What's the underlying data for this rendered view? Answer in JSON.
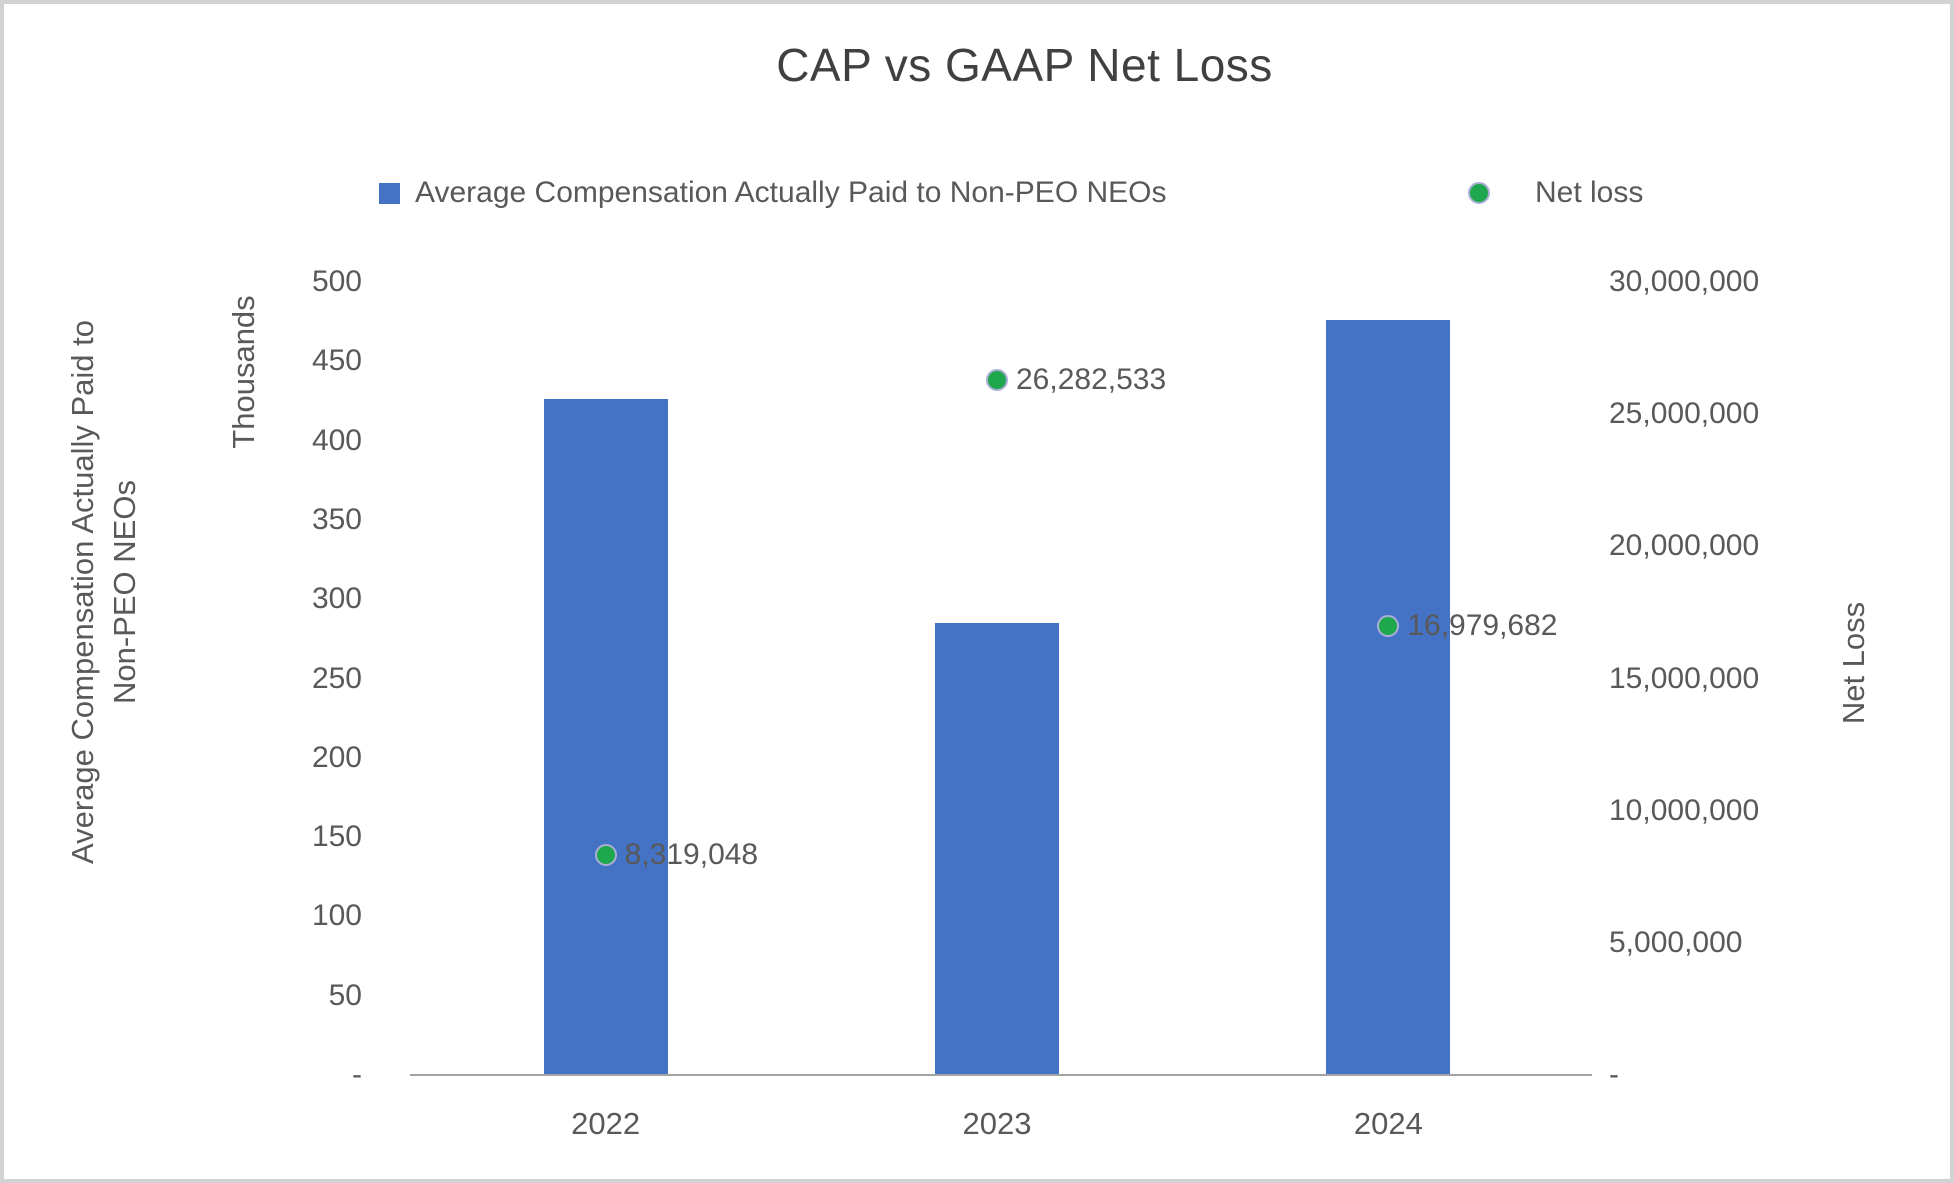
{
  "title": "CAP vs GAAP Net Loss",
  "legend": {
    "position": "top",
    "items": [
      {
        "label": "Average Compensation Actually Paid to Non-PEO NEOs",
        "marker": "square",
        "color": "#4472C4"
      },
      {
        "label": "Net loss",
        "marker": "circle",
        "color": "#1FA74E",
        "marker_border": "#A9AED6"
      }
    ]
  },
  "chart_data": {
    "type": "combo",
    "title": "CAP vs GAAP Net Loss",
    "categories": [
      "2022",
      "2023",
      "2024"
    ],
    "series": [
      {
        "name": "Average Compensation Actually Paid to Non-PEO NEOs",
        "type": "bar",
        "yaxis": "left",
        "color": "#4472C4",
        "values_thousands": [
          426,
          285,
          476
        ],
        "estimated_from_pixels": true
      },
      {
        "name": "Net loss",
        "type": "scatter",
        "yaxis": "right",
        "color": "#1FA74E",
        "marker_border": "#A9AED6",
        "values": [
          8319048,
          26282533,
          16979682
        ],
        "labels": [
          "8,319,048",
          "26,282,533",
          "16,979,682"
        ]
      }
    ],
    "left_axis": {
      "title_lines": [
        "Average Compensation Actually Paid to",
        "Non-PEO NEOs"
      ],
      "units_label": "Thousands",
      "range": [
        0,
        500
      ],
      "tick_step": 50,
      "tick_labels": [
        "500",
        "450",
        "400",
        "350",
        "300",
        "250",
        "200",
        "150",
        "100",
        "50",
        "-"
      ],
      "tick_values": [
        500,
        450,
        400,
        350,
        300,
        250,
        200,
        150,
        100,
        50,
        0
      ]
    },
    "right_axis": {
      "title": "Net Loss",
      "range": [
        0,
        30000000
      ],
      "tick_step": 5000000,
      "tick_labels": [
        "30,000,000",
        "25,000,000",
        "20,000,000",
        "15,000,000",
        "10,000,000",
        "5,000,000",
        "-"
      ],
      "tick_values": [
        30000000,
        25000000,
        20000000,
        15000000,
        10000000,
        5000000,
        0
      ]
    },
    "grid": false,
    "legend_position": "top"
  },
  "colors": {
    "background": "#FFFFFF",
    "frame_border": "#D2D2D2",
    "title_text": "#404040",
    "axis_text": "#595959",
    "axis_line": "#A3A3A3",
    "bar_fill": "#4472C4",
    "point_fill": "#1FA74E",
    "point_border": "#A9AED6"
  }
}
